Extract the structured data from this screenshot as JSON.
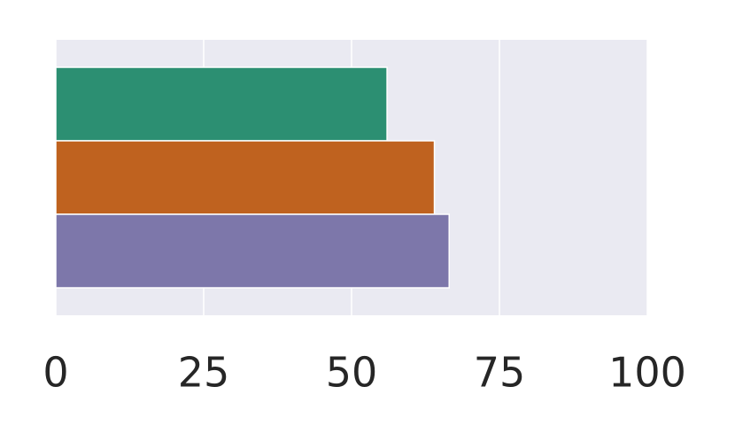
{
  "chart_data": {
    "type": "barh",
    "categories": [
      null,
      null,
      null
    ],
    "values": [
      56,
      64,
      66.5
    ],
    "colors": [
      "#2c8f72",
      "#bf621f",
      "#7d77aa"
    ],
    "xlim": [
      0,
      100
    ],
    "xticks": [
      0,
      25,
      50,
      75,
      100
    ],
    "grid": true
  }
}
